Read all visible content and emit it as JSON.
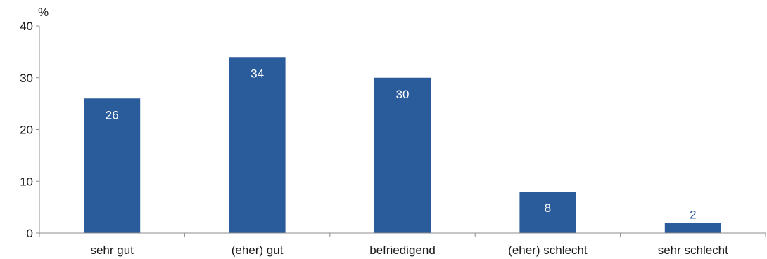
{
  "chart_data": {
    "type": "bar",
    "categories": [
      "sehr gut",
      "(eher) gut",
      "befriedigend",
      "(eher) schlecht",
      "sehr schlecht"
    ],
    "values": [
      26,
      34,
      30,
      8,
      2
    ],
    "data_labels": [
      "26",
      "34",
      "30",
      "8",
      "2"
    ],
    "y_unit": "%",
    "ylim": [
      0,
      40
    ],
    "yticks": [
      0,
      10,
      20,
      30,
      40
    ],
    "ytick_labels": [
      "0",
      "10",
      "20",
      "30",
      "40"
    ],
    "grid": false,
    "bar_color": "#2a5b9b",
    "label_inside_color": "#ffffff",
    "label_outside_color": "#2a5b9b"
  }
}
